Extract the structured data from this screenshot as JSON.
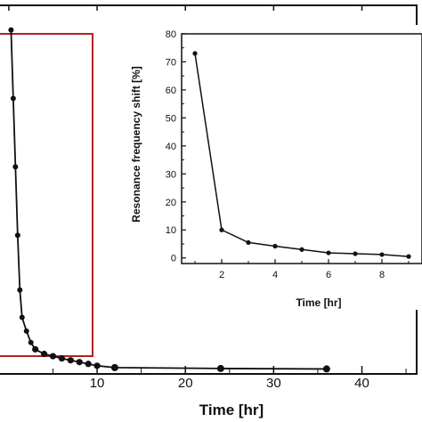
{
  "chart_data": [
    {
      "type": "line",
      "xlabel": "Time [hr]",
      "ylabel": "",
      "xlim": [
        -1,
        46
      ],
      "ylim": [
        0,
        80
      ],
      "xticks": [
        10,
        20,
        30,
        40
      ],
      "series": [
        {
          "x": [
            0.25,
            0.5,
            0.75,
            1,
            1.25,
            1.5,
            2,
            2.5,
            3,
            4,
            5,
            6,
            7,
            8,
            9,
            10,
            12,
            24,
            36
          ],
          "y": [
            75,
            60,
            45,
            30,
            18,
            12,
            9,
            6.5,
            5,
            4,
            3.5,
            3.0,
            2.6,
            2.2,
            1.8,
            1.4,
            1.0,
            0.8,
            0.7
          ]
        }
      ],
      "highlight_box": {
        "x_range": [
          -1,
          10.5
        ],
        "color": "#b22222"
      }
    },
    {
      "type": "line",
      "xlabel": "Time [hr]",
      "ylabel": "Resonance frequency shift [%]",
      "xlim": [
        0.5,
        9.5
      ],
      "ylim": [
        -2,
        80
      ],
      "xticks": [
        2,
        4,
        6,
        8
      ],
      "yticks": [
        0,
        10,
        20,
        30,
        40,
        50,
        60,
        70,
        80
      ],
      "series": [
        {
          "x": [
            1,
            2,
            3,
            4,
            5,
            6,
            7,
            8,
            9
          ],
          "y": [
            73,
            10,
            5.5,
            4.2,
            3.0,
            1.8,
            1.5,
            1.2,
            0.5
          ]
        }
      ]
    }
  ]
}
